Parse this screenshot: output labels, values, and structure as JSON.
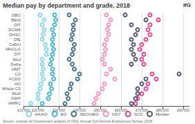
{
  "chart_data": {
    "type": "scatter",
    "title": "Median pay by department and grade, 2018",
    "orientation": "horizontal",
    "categories": [
      "DBO",
      "BEIS",
      "DfT",
      "DCMS",
      "DHSC",
      "DfE",
      "CabiU",
      "MHCLG",
      "DIT",
      "MoJ",
      "Defra",
      "HMT",
      "CO",
      "FCDO",
      "HO",
      "Whole CS",
      "MoD",
      "DWP",
      "HMRC"
    ],
    "series": [
      {
        "name": "AA/AO",
        "color": "#72cde4",
        "values": [
          21000,
          23000,
          22000,
          23000,
          22500,
          22000,
          23500,
          24000,
          24000,
          22000,
          22000,
          22500,
          22000,
          22500,
          21500,
          21000,
          20000,
          20000,
          16500
        ]
      },
      {
        "name": "EO",
        "color": "#1aa3c9",
        "values": [
          28000,
          28500,
          28000,
          27000,
          27500,
          27000,
          27000,
          27500,
          27000,
          26500,
          26000,
          27000,
          27000,
          27500,
          26000,
          26500,
          25500,
          25000,
          22000
        ]
      },
      {
        "name": "SEO/HEO",
        "color": "#1c4f72",
        "values": [
          35000,
          38000,
          37000,
          37000,
          36500,
          36000,
          37500,
          37000,
          36500,
          35000,
          36500,
          37500,
          40000,
          39000,
          36000,
          35500,
          34000,
          34500,
          33000
        ]
      },
      {
        "name": "G6/7",
        "color": "#f47ab0",
        "values": [
          53000,
          55000,
          54000,
          53500,
          54000,
          53000,
          52000,
          52500,
          52000,
          51000,
          52000,
          55000,
          53000,
          57000,
          52000,
          51000,
          49000,
          48000,
          47000
        ]
      },
      {
        "name": "SCS",
        "color": "#e0197d",
        "values": [
          74000,
          78000,
          74000,
          73000,
          74000,
          72000,
          70000,
          69000,
          71000,
          70000,
          71000,
          null,
          75000,
          77000,
          73000,
          72000,
          70000,
          68000,
          67000
        ]
      },
      {
        "name": "Median",
        "color": "#2e3052",
        "values": [
          62000,
          72000,
          65000,
          68000,
          67000,
          65000,
          66000,
          65000,
          66000,
          67000,
          65000,
          null,
          88000,
          72000,
          70000,
          68000,
          68000,
          67000,
          65000
        ]
      }
    ],
    "xlim": [
      13000,
      93000
    ],
    "xticks": [
      {
        "value": 13000,
        "label": "£13,000"
      },
      {
        "value": 20000,
        "label": "£20,000"
      },
      {
        "value": 30000,
        "label": "£30,000"
      },
      {
        "value": 40000,
        "label": "£40,000"
      },
      {
        "value": 50000,
        "label": "£50,000"
      },
      {
        "value": 60000,
        "label": "£60,000"
      },
      {
        "value": 70000,
        "label": "£70,000"
      },
      {
        "value": 80000,
        "label": "£80,000"
      },
      {
        "value": 90000,
        "label": "£90,000"
      }
    ],
    "grid": true,
    "legend": "bottom",
    "annotations": [
      "IfG",
      "Source: Institute for Government analysis of ONS, Annual Civil Service Employment Survey, 2018."
    ]
  }
}
